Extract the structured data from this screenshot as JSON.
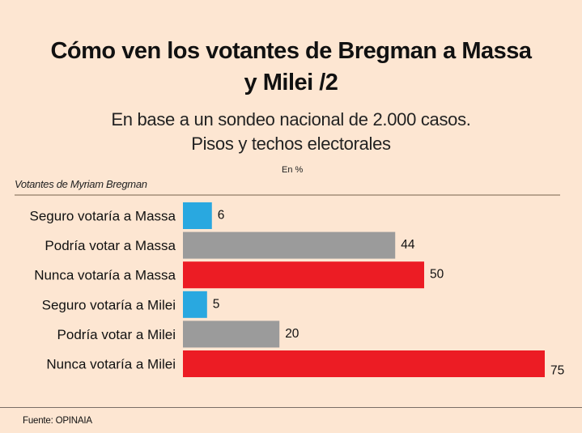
{
  "header": {
    "title_line1": "Cómo ven los votantes de Bregman a Massa",
    "title_line2": "y Milei /2",
    "subtitle_line1": "En base a un sondeo nacional de 2.000 casos.",
    "subtitle_line2": "Pisos y techos electorales"
  },
  "unit_label": "En %",
  "group_label": "Votantes de Myriam Bregman",
  "footer": {
    "source": "Fuente: OPINAIA"
  },
  "colors": {
    "background": "#fde6d2",
    "seguro": "#29a8e0",
    "podria": "#9b9b9b",
    "nunca": "#ec1c24"
  },
  "chart_data": {
    "type": "bar",
    "orientation": "horizontal",
    "title": "Cómo ven los votantes de Bregman a Massa y Milei /2",
    "subtitle": "En base a un sondeo nacional de 2.000 casos. Pisos y techos electorales",
    "unit": "En %",
    "group": "Votantes de Myriam Bregman",
    "categories": [
      "Seguro votaría a Massa",
      "Podría votar a Massa",
      "Nunca votaría a Massa",
      "Seguro votaría a Milei",
      "Podría votar a Milei",
      "Nunca votaría a Milei"
    ],
    "values": [
      6,
      44,
      50,
      5,
      20,
      75
    ],
    "bar_colors": [
      "#29a8e0",
      "#9b9b9b",
      "#ec1c24",
      "#29a8e0",
      "#9b9b9b",
      "#ec1c24"
    ],
    "xlim": [
      0,
      75
    ],
    "grid": false,
    "legend": "none",
    "data_labels": [
      "6",
      "44",
      "50",
      "5",
      "20",
      "75"
    ],
    "source": "Fuente: OPINAIA"
  }
}
